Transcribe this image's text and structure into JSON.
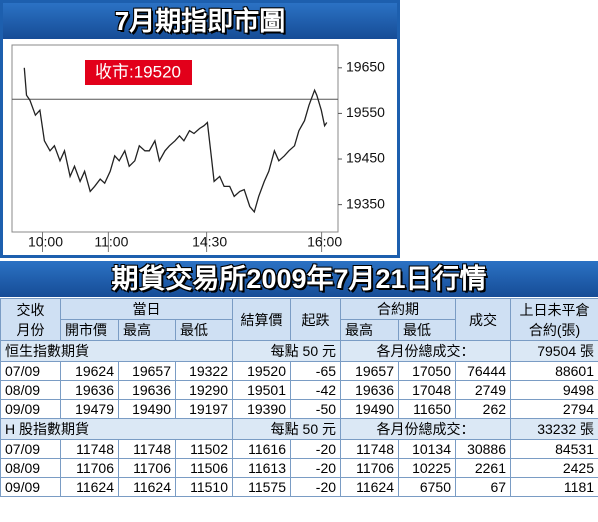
{
  "chart_data": {
    "type": "line",
    "title": "7月期指即市圖",
    "annotation": "收市:19520",
    "x": [
      11,
      13,
      16,
      21,
      25,
      29,
      34,
      38,
      43,
      47,
      52,
      56,
      61,
      65,
      70,
      74,
      79,
      83,
      88,
      92,
      96,
      101,
      105,
      110,
      114,
      119,
      123,
      128,
      132,
      137,
      141,
      146,
      150,
      154,
      159,
      163,
      168,
      172,
      175,
      179,
      181,
      186,
      190,
      195,
      199,
      204,
      208,
      213,
      217,
      221,
      226,
      230,
      235,
      239,
      244,
      248,
      253,
      257,
      262,
      266,
      271,
      273,
      277,
      280,
      282
    ],
    "series": [
      {
        "color": "#222222",
        "values": [
          19650,
          19590,
          19579,
          19546,
          19557,
          19490,
          19468,
          19479,
          19446,
          19468,
          19412,
          19434,
          19401,
          19423,
          19379,
          19390,
          19406,
          19397,
          19423,
          19457,
          19446,
          19468,
          19434,
          19446,
          19479,
          19468,
          19468,
          19490,
          19446,
          19468,
          19479,
          19490,
          19501,
          19490,
          19512,
          19506,
          19517,
          19523,
          19530,
          19446,
          19401,
          19412,
          19390,
          19390,
          19368,
          19379,
          19383,
          19346,
          19334,
          19368,
          19401,
          19423,
          19468,
          19446,
          19457,
          19468,
          19479,
          19512,
          19534,
          19568,
          19601,
          19590,
          19557,
          19523,
          19530
        ]
      }
    ],
    "ref_line": 19581,
    "xlim": [
      0,
      292
    ],
    "xticks": [
      {
        "value": 30,
        "label": "10:00"
      },
      {
        "value": 89,
        "label": "11:00"
      },
      {
        "value": 177,
        "label": "14:30"
      },
      {
        "value": 280,
        "label": "16:00"
      }
    ],
    "ylim": [
      19290,
      19700
    ],
    "yticks": [
      19650,
      19550,
      19450,
      19350
    ]
  },
  "table": {
    "title": "期貨交易所2009年7月21日行情",
    "header": {
      "month": [
        "交收",
        "月份"
      ],
      "day": "當日",
      "open": "開市價",
      "high": "最高",
      "low": "最低",
      "settle": "結算價",
      "change": "起跌",
      "contract": "合約期",
      "c_high": "最高",
      "c_low": "最低",
      "volume": "成交",
      "oi": [
        "上日未平倉",
        "合約(張)"
      ]
    },
    "sections": [
      {
        "name": "恒生指數期貨",
        "per_point": "每點 50 元",
        "total_label": "各月份總成交：",
        "total": "79504 張",
        "rows": [
          [
            "07/09",
            "19624",
            "19657",
            "19322",
            "19520",
            "-65",
            "19657",
            "17050",
            "76444",
            "88601"
          ],
          [
            "08/09",
            "19636",
            "19636",
            "19290",
            "19501",
            "-42",
            "19636",
            "17048",
            "2749",
            "9498"
          ],
          [
            "09/09",
            "19479",
            "19490",
            "19197",
            "19390",
            "-50",
            "19490",
            "11650",
            "262",
            "2794"
          ]
        ]
      },
      {
        "name": "H 股指數期貨",
        "per_point": "每點 50 元",
        "total_label": "各月份總成交：",
        "total": "33232 張",
        "rows": [
          [
            "07/09",
            "11748",
            "11748",
            "11502",
            "11616",
            "-20",
            "11748",
            "10134",
            "30886",
            "84531"
          ],
          [
            "08/09",
            "11706",
            "11706",
            "11506",
            "11613",
            "-20",
            "11706",
            "10225",
            "2261",
            "2425"
          ],
          [
            "09/09",
            "11624",
            "11624",
            "11510",
            "11575",
            "-20",
            "11624",
            "6750",
            "67",
            "1181"
          ]
        ]
      }
    ]
  }
}
